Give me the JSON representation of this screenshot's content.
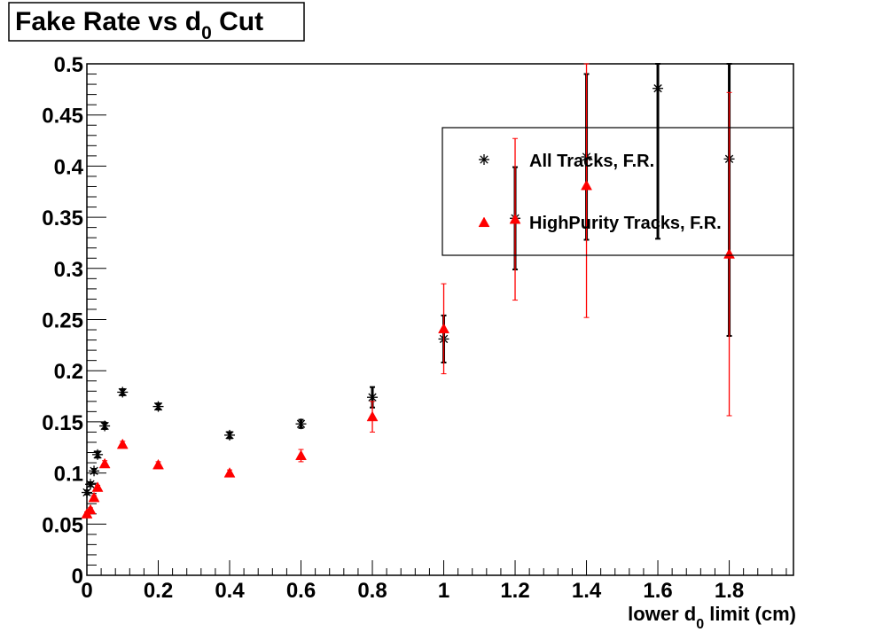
{
  "chart_data": {
    "type": "scatter",
    "title": "Fake Rate vs d",
    "title_subscript": "0",
    "title_suffix": " Cut",
    "xlabel": "lower d",
    "xlabel_subscript": "0",
    "xlabel_suffix": " limit (cm)",
    "ylabel": "",
    "xlim": [
      0,
      1.98
    ],
    "ylim": [
      0,
      0.5
    ],
    "x_ticks": [
      0,
      0.2,
      0.4,
      0.6,
      0.8,
      1.0,
      1.2,
      1.4,
      1.6,
      1.8
    ],
    "x_tick_labels": [
      "0",
      "0.2",
      "0.4",
      "0.6",
      "0.8",
      "1",
      "1.2",
      "1.4",
      "1.6",
      "1.8"
    ],
    "y_ticks": [
      0,
      0.05,
      0.1,
      0.15,
      0.2,
      0.25,
      0.3,
      0.35,
      0.4,
      0.45,
      0.5
    ],
    "y_tick_labels": [
      "0",
      "0.05",
      "0.1",
      "0.15",
      "0.2",
      "0.25",
      "0.3",
      "0.35",
      "0.4",
      "0.45",
      "0.5"
    ],
    "grid": false,
    "legend_position": "top-right",
    "series": [
      {
        "name": "All Tracks, F.R.",
        "marker": "asterisk",
        "color": "#000000",
        "x": [
          0.0,
          0.01,
          0.02,
          0.03,
          0.05,
          0.1,
          0.2,
          0.4,
          0.6,
          0.8,
          1.0,
          1.2,
          1.4,
          1.6,
          1.8
        ],
        "y": [
          0.081,
          0.089,
          0.102,
          0.118,
          0.146,
          0.179,
          0.165,
          0.137,
          0.148,
          0.174,
          0.231,
          0.349,
          0.409,
          0.476,
          0.407
        ],
        "err": [
          0.002,
          0.002,
          0.002,
          0.003,
          0.003,
          0.003,
          0.003,
          0.003,
          0.004,
          0.01,
          0.023,
          0.05,
          0.081,
          0.147,
          0.173
        ]
      },
      {
        "name": "HighPurity Tracks, F.R.",
        "marker": "triangle",
        "color": "#ff0000",
        "x": [
          0.0,
          0.01,
          0.02,
          0.03,
          0.05,
          0.1,
          0.2,
          0.4,
          0.6,
          0.8,
          1.0,
          1.2,
          1.4,
          1.6,
          1.8
        ],
        "y": [
          0.06,
          0.064,
          0.076,
          0.086,
          0.109,
          0.128,
          0.108,
          0.1,
          0.117,
          0.155,
          0.241,
          0.348,
          0.381,
          null,
          0.314
        ],
        "err": [
          0.002,
          0.002,
          0.002,
          0.002,
          0.003,
          0.003,
          0.003,
          0.003,
          0.006,
          0.015,
          0.044,
          0.079,
          0.129,
          null,
          0.158
        ]
      }
    ]
  }
}
